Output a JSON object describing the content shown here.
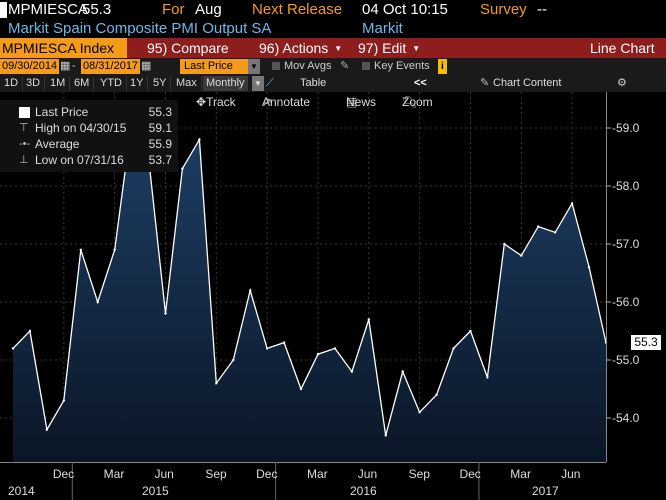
{
  "header": {
    "ticker": "MPMIESCA",
    "last": "55.3",
    "for_label": "For",
    "for_value": "Aug",
    "next_label": "Next Release",
    "next_value": "04 Oct 10:15",
    "survey_label": "Survey",
    "survey_value": "--",
    "description": "Markit Spain Composite PMI Output SA",
    "source": "Markit"
  },
  "toolbar": {
    "security": "MPMIESCA Index",
    "compare_num": "95)",
    "compare": "Compare",
    "actions_num": "96)",
    "actions": "Actions",
    "edit_num": "97)",
    "edit": "Edit",
    "chart_type": "Line Chart"
  },
  "range": {
    "start": "09/30/2014",
    "end": "08/31/2017",
    "field": "Last Price",
    "mov_avgs": "Mov Avgs",
    "key_events": "Key Events",
    "info": "i"
  },
  "periods": [
    "1D",
    "3D",
    "1M",
    "6M",
    "YTD",
    "1Y",
    "5Y",
    "Max"
  ],
  "frequency": "Monthly",
  "table_label": "Table",
  "collapse_label": "<<",
  "chart_content": "Chart Content",
  "tools": {
    "track": "Track",
    "annotate": "Annotate",
    "news": "News",
    "zoom": "Zoom"
  },
  "legend": {
    "last_label": "Last Price",
    "last_value": "55.3",
    "high_label": "High on 04/30/15",
    "high_value": "59.1",
    "avg_label": "Average",
    "avg_value": "55.9",
    "low_label": "Low on 07/31/16",
    "low_value": "53.7"
  },
  "last_tag": "55.3",
  "colors": {
    "accent": "#f59b1a",
    "toolbar_red": "#8e1e1e",
    "series_line": "#ffffff",
    "area_top": "#1e3f66"
  },
  "chart_data": {
    "type": "area",
    "title": "Markit Spain Composite PMI Output SA",
    "x": [
      "2014-09",
      "2014-10",
      "2014-11",
      "2014-12",
      "2015-01",
      "2015-02",
      "2015-03",
      "2015-04",
      "2015-05",
      "2015-06",
      "2015-07",
      "2015-08",
      "2015-09",
      "2015-10",
      "2015-11",
      "2015-12",
      "2016-01",
      "2016-02",
      "2016-03",
      "2016-04",
      "2016-05",
      "2016-06",
      "2016-07",
      "2016-08",
      "2016-09",
      "2016-10",
      "2016-11",
      "2016-12",
      "2017-01",
      "2017-02",
      "2017-03",
      "2017-04",
      "2017-05",
      "2017-06",
      "2017-07",
      "2017-08"
    ],
    "values": [
      55.2,
      55.5,
      53.8,
      54.3,
      56.9,
      56.0,
      56.9,
      59.1,
      58.5,
      55.8,
      58.3,
      58.8,
      54.6,
      55.0,
      56.2,
      55.2,
      55.3,
      54.5,
      55.1,
      55.2,
      54.8,
      55.7,
      53.7,
      54.8,
      54.1,
      54.4,
      55.2,
      55.5,
      54.7,
      57.0,
      56.8,
      57.3,
      57.2,
      57.7,
      56.6,
      55.3
    ],
    "ylim": [
      53.2,
      59.65
    ],
    "yticks": [
      "54.0",
      "55.0",
      "56.0",
      "57.0",
      "58.0",
      "59.0"
    ],
    "x_months": [
      "Dec",
      "Mar",
      "Jun",
      "Sep",
      "Dec",
      "Mar",
      "Jun",
      "Sep",
      "Dec",
      "Mar",
      "Jun"
    ],
    "x_years": [
      "2014",
      "2015",
      "2016",
      "2017"
    ],
    "grid": true,
    "legend_position": "top-left"
  }
}
